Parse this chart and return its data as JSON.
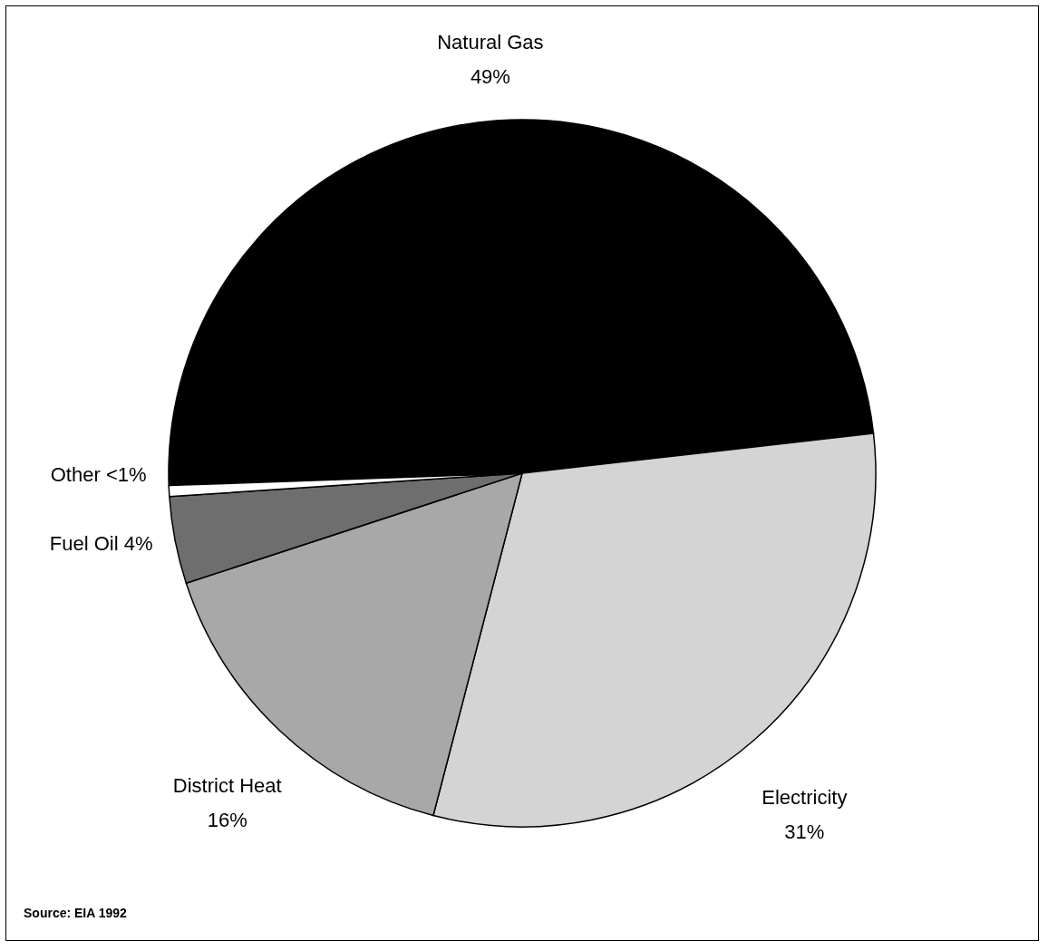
{
  "chart_data": {
    "type": "pie",
    "categories": [
      "Natural Gas",
      "Electricity",
      "District Heat",
      "Fuel Oil",
      "Other"
    ],
    "values": [
      49,
      31,
      16,
      4,
      0.5
    ],
    "value_labels": [
      "49%",
      "31%",
      "16%",
      "4%",
      "<1%"
    ],
    "colors": [
      "#000000",
      "#d4d4d4",
      "#a8a8a8",
      "#6e6e6e",
      "#ffffff"
    ],
    "annotations": [
      "Source: EIA 1992"
    ]
  }
}
